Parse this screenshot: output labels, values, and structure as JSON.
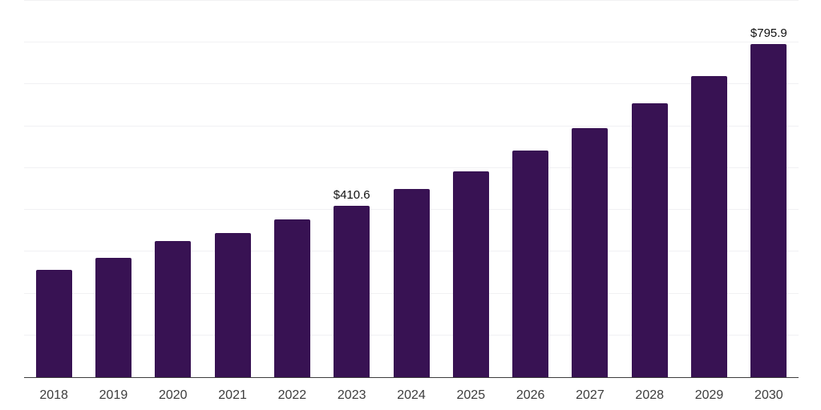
{
  "chart_data": {
    "type": "bar",
    "title": "",
    "xlabel": "",
    "ylabel": "",
    "categories": [
      "2018",
      "2019",
      "2020",
      "2021",
      "2022",
      "2023",
      "2024",
      "2025",
      "2026",
      "2027",
      "2028",
      "2029",
      "2030"
    ],
    "values": [
      255.8,
      286.0,
      326.1,
      344.4,
      376.6,
      410.6,
      449.2,
      491.5,
      542.5,
      596.0,
      655.5,
      720.5,
      795.9
    ],
    "data_labels": [
      {
        "index": 5,
        "text": "$410.6"
      },
      {
        "index": 12,
        "text": "$795.9"
      }
    ],
    "ylim": [
      0,
      900
    ],
    "grid_step": 100,
    "grid": true,
    "legend": false,
    "bar_color": "#381253",
    "grid_color": "#f1f1f3",
    "axis_line_color": "#3d3d3d",
    "tick_label_color": "#3c3c3c",
    "data_label_color": "#111111"
  }
}
